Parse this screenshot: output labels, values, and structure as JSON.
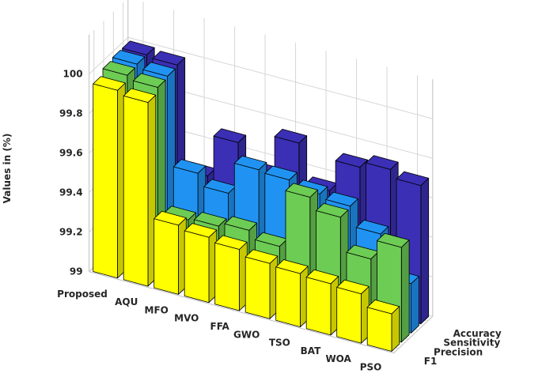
{
  "chart_data": {
    "type": "bar",
    "subtype": "3d-grouped-bar",
    "title": "",
    "xlabel": "",
    "ylabel": "",
    "zlabel": "Values in (%)",
    "zlim": [
      99,
      100.2
    ],
    "z_ticks": [
      99,
      99.2,
      99.4,
      99.6,
      99.8,
      100
    ],
    "z_tick_labels": [
      "99",
      "99.2",
      "99.4",
      "99.6",
      "99.8",
      "100"
    ],
    "grid": true,
    "categories": [
      "Proposed",
      "AQU",
      "MFO",
      "MVO",
      "FFA",
      "GWO",
      "TSO",
      "BAT",
      "WOA",
      "PSO"
    ],
    "series": [
      {
        "name": "F1",
        "color": "#FFFF00",
        "values": [
          99.95,
          99.93,
          99.35,
          99.33,
          99.31,
          99.28,
          99.27,
          99.26,
          99.25,
          99.19
        ]
      },
      {
        "name": "Precision",
        "color": "#6CCC54",
        "values": [
          99.98,
          99.96,
          99.33,
          99.34,
          99.36,
          99.32,
          99.61,
          99.55,
          99.38,
          99.48
        ]
      },
      {
        "name": "Sensitivity",
        "color": "#2093F2",
        "values": [
          99.99,
          99.97,
          99.52,
          99.46,
          99.62,
          99.61,
          99.58,
          99.56,
          99.46,
          99.25
        ]
      },
      {
        "name": "Accuracy",
        "color": "#3B2FB5",
        "values": [
          99.99,
          99.98,
          99.46,
          99.67,
          99.55,
          99.75,
          99.55,
          99.71,
          99.74,
          99.7
        ]
      }
    ]
  }
}
